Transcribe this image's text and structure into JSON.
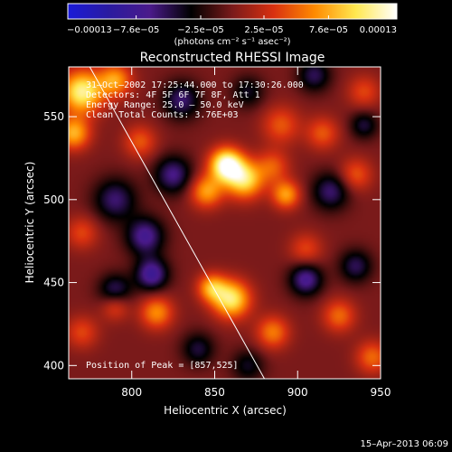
{
  "chart_data": {
    "type": "heatmap",
    "title": "Reconstructed RHESSI Image",
    "xlabel": "Heliocentric X (arcsec)",
    "ylabel": "Heliocentric Y (arcsec)",
    "xlim": [
      762,
      950
    ],
    "ylim": [
      392,
      580
    ],
    "x_ticks": [
      "800",
      "850",
      "900",
      "950"
    ],
    "y_ticks": [
      "400",
      "450",
      "500",
      "550"
    ],
    "x_tick_values": [
      800,
      850,
      900,
      950
    ],
    "y_tick_values": [
      400,
      450,
      500,
      550
    ],
    "colorbar": {
      "min": -0.00013,
      "max": 0.00013,
      "tick_labels": [
        "−0.00013",
        "−7.6e−05",
        "−2.5e−05",
        "2.5e−05",
        "7.6e−05",
        "0.00013"
      ],
      "tick_values": [
        -0.00013,
        -7.6e-05,
        -2.5e-05,
        2.5e-05,
        7.6e-05,
        0.00013
      ],
      "unit_label": "(photons cm⁻² s⁻¹ asec⁻²)",
      "colormap": [
        "#1a1ad8",
        "#2a1aa0",
        "#4a1a8a",
        "#000000",
        "#7a1a1a",
        "#d83010",
        "#ff8a00",
        "#ffe850",
        "#ffffff"
      ]
    },
    "annotations": [
      "31–Oct–2002 17:25:44.000 to 17:30:26.000",
      "Detectors: 4F 5F 6F 7F 8F, Att 1",
      "Energy Range: 25.0 – 50.0 keV",
      "Clean    Total Counts: 3.76E+03"
    ],
    "peak_label": "Position of Peak = [857,525]",
    "peak": [
      857,
      525
    ],
    "limb_line": [
      [
        773,
        583
      ],
      [
        880,
        392
      ]
    ],
    "sources": [
      {
        "x": 857,
        "y": 521,
        "amp": 1.0,
        "sigma": 7
      },
      {
        "x": 868,
        "y": 512,
        "amp": 0.75,
        "sigma": 8
      },
      {
        "x": 845,
        "y": 505,
        "amp": 0.55,
        "sigma": 7
      },
      {
        "x": 885,
        "y": 520,
        "amp": 0.35,
        "sigma": 7
      },
      {
        "x": 893,
        "y": 503,
        "amp": 0.55,
        "sigma": 6
      },
      {
        "x": 890,
        "y": 545,
        "amp": 0.35,
        "sigma": 8
      },
      {
        "x": 915,
        "y": 540,
        "amp": 0.35,
        "sigma": 7
      },
      {
        "x": 935,
        "y": 515,
        "amp": 0.35,
        "sigma": 7
      },
      {
        "x": 770,
        "y": 565,
        "amp": 0.85,
        "sigma": 9
      },
      {
        "x": 765,
        "y": 540,
        "amp": 0.6,
        "sigma": 7
      },
      {
        "x": 790,
        "y": 572,
        "amp": 0.55,
        "sigma": 7
      },
      {
        "x": 805,
        "y": 535,
        "amp": 0.35,
        "sigma": 7
      },
      {
        "x": 770,
        "y": 480,
        "amp": 0.3,
        "sigma": 7
      },
      {
        "x": 860,
        "y": 440,
        "amp": 0.8,
        "sigma": 8
      },
      {
        "x": 848,
        "y": 447,
        "amp": 0.55,
        "sigma": 6
      },
      {
        "x": 815,
        "y": 432,
        "amp": 0.5,
        "sigma": 7
      },
      {
        "x": 790,
        "y": 436,
        "amp": 0.35,
        "sigma": 6
      },
      {
        "x": 885,
        "y": 420,
        "amp": 0.45,
        "sigma": 7
      },
      {
        "x": 925,
        "y": 430,
        "amp": 0.4,
        "sigma": 7
      },
      {
        "x": 945,
        "y": 405,
        "amp": 0.4,
        "sigma": 7
      },
      {
        "x": 905,
        "y": 470,
        "amp": 0.3,
        "sigma": 7
      },
      {
        "x": 770,
        "y": 420,
        "amp": 0.3,
        "sigma": 7
      },
      {
        "x": 940,
        "y": 565,
        "amp": 0.3,
        "sigma": 7
      },
      {
        "x": 790,
        "y": 500,
        "amp": -0.45,
        "sigma": 9
      },
      {
        "x": 808,
        "y": 478,
        "amp": -0.55,
        "sigma": 8
      },
      {
        "x": 825,
        "y": 515,
        "amp": -0.5,
        "sigma": 8
      },
      {
        "x": 830,
        "y": 560,
        "amp": -0.45,
        "sigma": 8
      },
      {
        "x": 812,
        "y": 455,
        "amp": -0.6,
        "sigma": 7
      },
      {
        "x": 790,
        "y": 445,
        "amp": -0.45,
        "sigma": 7
      },
      {
        "x": 905,
        "y": 452,
        "amp": -0.55,
        "sigma": 7
      },
      {
        "x": 920,
        "y": 505,
        "amp": -0.45,
        "sigma": 8
      },
      {
        "x": 910,
        "y": 575,
        "amp": -0.4,
        "sigma": 7
      },
      {
        "x": 870,
        "y": 565,
        "amp": -0.3,
        "sigma": 7
      },
      {
        "x": 935,
        "y": 460,
        "amp": -0.4,
        "sigma": 7
      },
      {
        "x": 840,
        "y": 410,
        "amp": -0.35,
        "sigma": 7
      },
      {
        "x": 870,
        "y": 400,
        "amp": -0.3,
        "sigma": 7
      },
      {
        "x": 940,
        "y": 545,
        "amp": -0.35,
        "sigma": 6
      }
    ]
  },
  "footer": {
    "timestamp": "15–Apr–2013 06:09"
  }
}
